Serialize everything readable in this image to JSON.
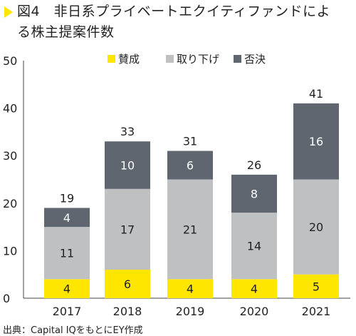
{
  "figure": {
    "title_line1": "図4　非日系プライベートエクイティファンドによ",
    "title_line2": "る株主提案件数",
    "source": "出典：Capital IQをもとにEY作成"
  },
  "chart_data": {
    "type": "bar",
    "stacked": true,
    "categories": [
      "2017",
      "2018",
      "2019",
      "2020",
      "2021"
    ],
    "series": [
      {
        "name": "賛成",
        "color": "#ffe600",
        "values": [
          4,
          6,
          4,
          4,
          5
        ]
      },
      {
        "name": "取り下げ",
        "color": "#bfc0c2",
        "values": [
          11,
          17,
          21,
          14,
          20
        ]
      },
      {
        "name": "否決",
        "color": "#5f6670",
        "values": [
          4,
          10,
          6,
          8,
          16
        ]
      }
    ],
    "totals": [
      19,
      33,
      31,
      26,
      41
    ],
    "ylim": [
      0,
      50
    ],
    "yticks": [
      0,
      10,
      20,
      30,
      40,
      50
    ],
    "legend_position": "top",
    "grid": false
  }
}
